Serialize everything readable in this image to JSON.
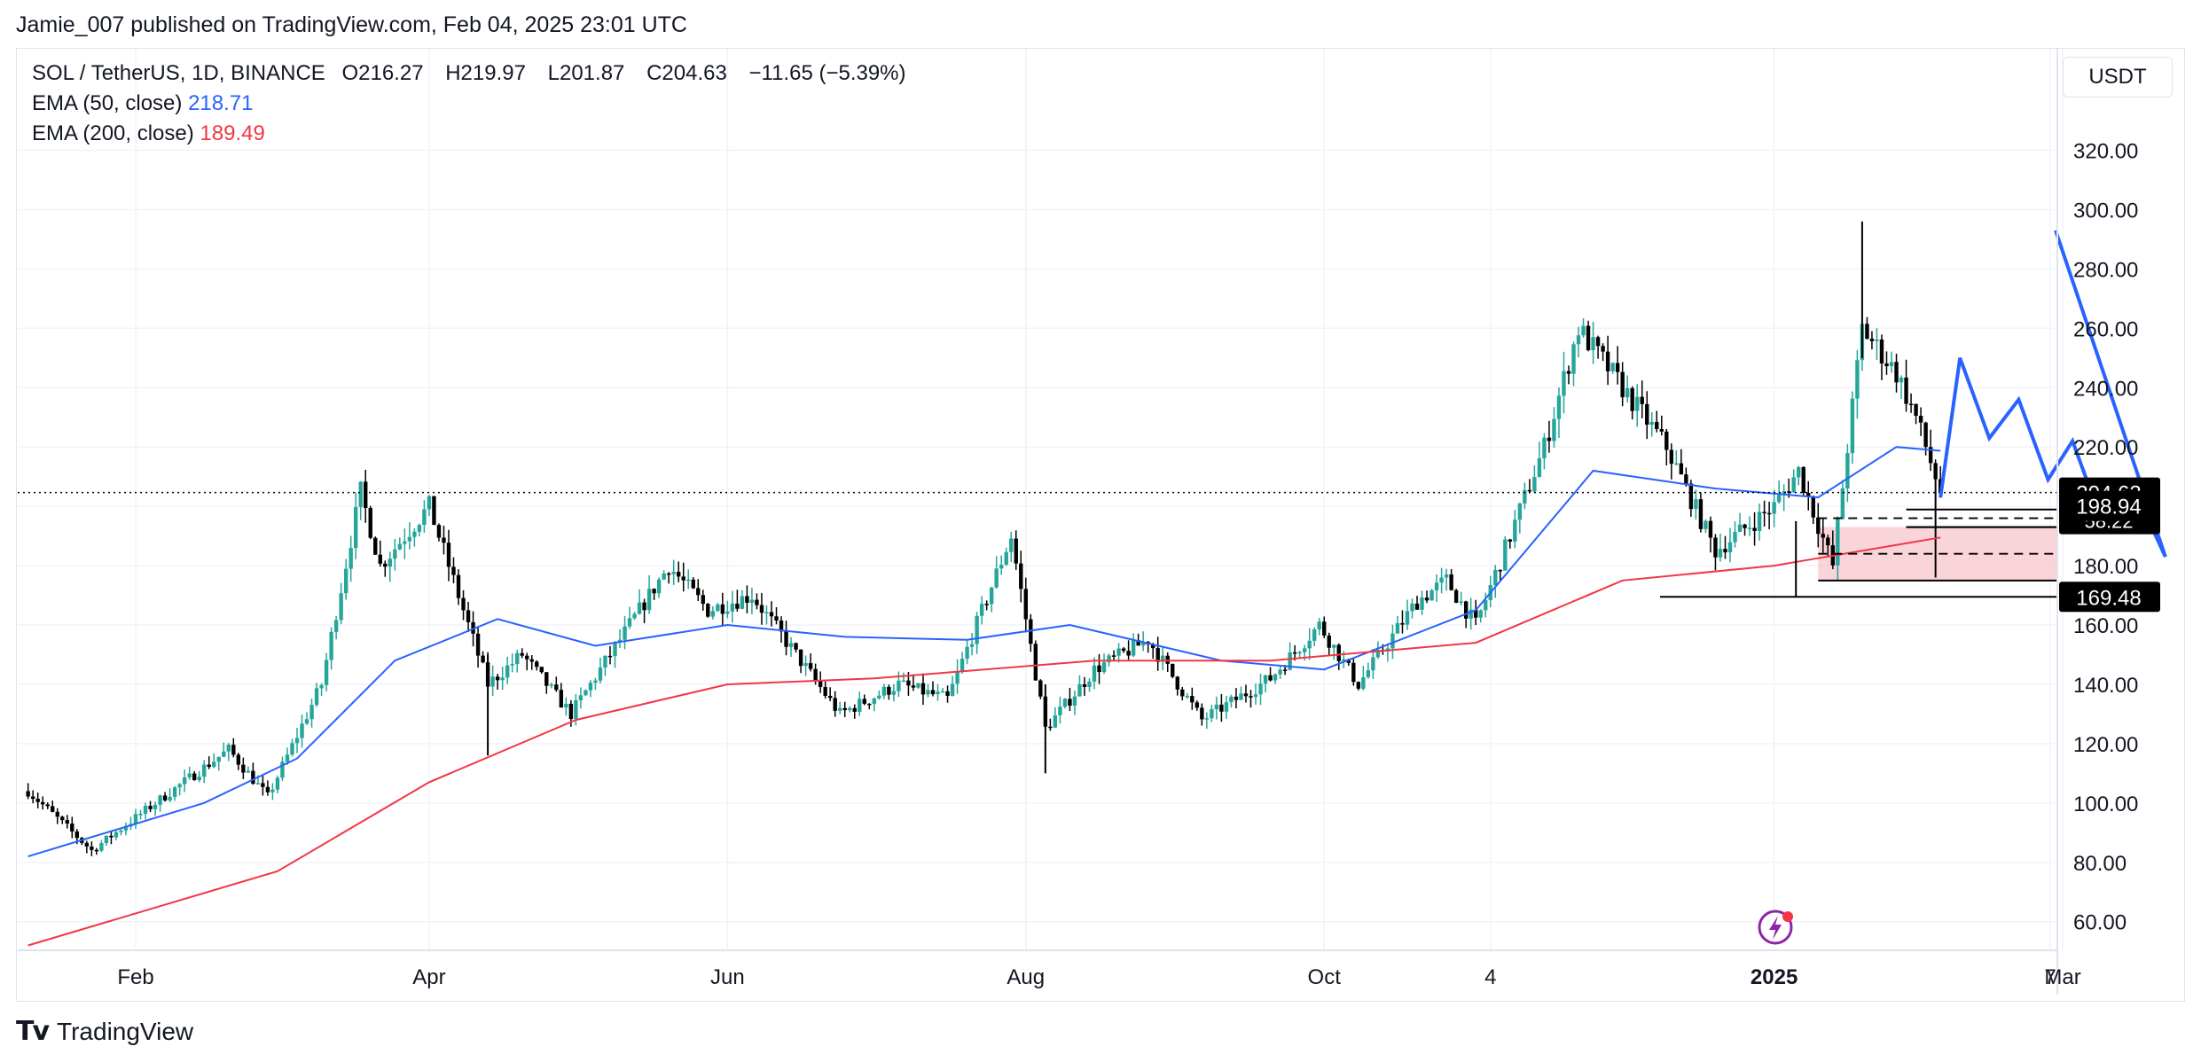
{
  "header": {
    "published": "Jamie_007 published on TradingView.com, Feb 04, 2025 23:01 UTC"
  },
  "legend": {
    "symbol": "SOL / TetherUS, 1D, BINANCE",
    "open": "O216.27",
    "high": "H219.97",
    "low": "L201.87",
    "close": "C204.63",
    "change": "−11.65 (−5.39%)",
    "ema50_label": "EMA (50, close)",
    "ema50_value": "218.71",
    "ema200_label": "EMA (200, close)",
    "ema200_value": "189.49"
  },
  "toolbar": {
    "currency": "USDT"
  },
  "footer": {
    "brand": "TradingView"
  },
  "colors": {
    "up": "#26a69a",
    "down": "#000000",
    "ema50": "#2962ff",
    "ema200": "#f23645",
    "projection": "#2962ff",
    "zone_fill": "#f7c9cf"
  },
  "chart_data": {
    "type": "candlestick",
    "title": "SOL / TetherUS, 1D, BINANCE",
    "x_ticks": [
      "Feb",
      "Apr",
      "Jun",
      "Aug",
      "Oct",
      "4",
      "2025",
      "Mar",
      "7"
    ],
    "y_ticks": [
      "60.00",
      "80.00",
      "100.00",
      "120.00",
      "140.00",
      "160.00",
      "180.00",
      "200.00",
      "220.00",
      "240.00",
      "260.00",
      "280.00",
      "300.00",
      "320.00"
    ],
    "ylim": [
      50,
      340
    ],
    "price_labels": {
      "last": "204.63",
      "countdown": "58:22",
      "level_1": "198.94",
      "level_2": "169.48"
    },
    "price_path": [
      [
        "2024-01-10",
        104
      ],
      [
        "2024-01-23",
        84
      ],
      [
        "2024-02-05",
        100
      ],
      [
        "2024-02-20",
        118
      ],
      [
        "2024-02-28",
        102
      ],
      [
        "2024-03-10",
        140
      ],
      [
        "2024-03-18",
        205
      ],
      [
        "2024-03-22",
        180
      ],
      [
        "2024-04-01",
        200
      ],
      [
        "2024-04-13",
        140
      ],
      [
        "2024-04-20",
        150
      ],
      [
        "2024-04-30",
        130
      ],
      [
        "2024-05-20",
        180
      ],
      [
        "2024-05-28",
        165
      ],
      [
        "2024-06-06",
        170
      ],
      [
        "2024-06-24",
        130
      ],
      [
        "2024-07-06",
        140
      ],
      [
        "2024-07-16",
        135
      ],
      [
        "2024-07-29",
        190
      ],
      [
        "2024-08-05",
        125
      ],
      [
        "2024-08-15",
        145
      ],
      [
        "2024-08-26",
        155
      ],
      [
        "2024-09-06",
        128
      ],
      [
        "2024-09-20",
        142
      ],
      [
        "2024-09-30",
        160
      ],
      [
        "2024-10-08",
        140
      ],
      [
        "2024-10-20",
        168
      ],
      [
        "2024-10-26",
        175
      ],
      [
        "2024-11-01",
        160
      ],
      [
        "2024-11-15",
        220
      ],
      [
        "2024-11-22",
        260
      ],
      [
        "2024-12-01",
        240
      ],
      [
        "2024-12-10",
        220
      ],
      [
        "2024-12-20",
        185
      ],
      [
        "2025-01-01",
        200
      ],
      [
        "2025-01-06",
        212
      ],
      [
        "2025-01-13",
        180
      ],
      [
        "2025-01-19",
        260
      ],
      [
        "2025-01-26",
        245
      ],
      [
        "2025-01-30",
        230
      ],
      [
        "2025-02-04",
        205
      ]
    ],
    "series": [
      {
        "name": "EMA (50, close)",
        "color": "#2962ff",
        "points": [
          [
            "2024-01-10",
            82
          ],
          [
            "2024-02-15",
            100
          ],
          [
            "2024-03-05",
            115
          ],
          [
            "2024-03-25",
            148
          ],
          [
            "2024-04-15",
            162
          ],
          [
            "2024-05-05",
            153
          ],
          [
            "2024-06-01",
            160
          ],
          [
            "2024-06-25",
            156
          ],
          [
            "2024-07-20",
            155
          ],
          [
            "2024-08-10",
            160
          ],
          [
            "2024-09-10",
            148
          ],
          [
            "2024-10-01",
            145
          ],
          [
            "2024-11-01",
            165
          ],
          [
            "2024-11-25",
            212
          ],
          [
            "2024-12-20",
            206
          ],
          [
            "2025-01-10",
            203
          ],
          [
            "2025-01-26",
            220
          ],
          [
            "2025-02-04",
            218.71
          ]
        ]
      },
      {
        "name": "EMA (200, close)",
        "color": "#f23645",
        "points": [
          [
            "2024-01-10",
            52
          ],
          [
            "2024-03-01",
            77
          ],
          [
            "2024-04-01",
            107
          ],
          [
            "2024-05-01",
            128
          ],
          [
            "2024-06-01",
            140
          ],
          [
            "2024-07-01",
            142
          ],
          [
            "2024-08-15",
            148
          ],
          [
            "2024-09-20",
            148
          ],
          [
            "2024-11-01",
            154
          ],
          [
            "2024-12-01",
            175
          ],
          [
            "2025-01-01",
            180
          ],
          [
            "2025-02-04",
            189.49
          ]
        ]
      }
    ],
    "annotations": {
      "projection_path": [
        [
          "2025-02-04",
          203
        ],
        [
          "2025-02-08",
          250
        ],
        [
          "2025-02-14",
          223
        ],
        [
          "2025-02-20",
          236
        ],
        [
          "2025-02-26",
          209
        ],
        [
          "2025-03-03",
          222
        ],
        [
          "2025-03-09",
          195
        ],
        [
          "2025-03-15",
          208
        ],
        [
          "2025-03-22",
          183
        ],
        [
          "2025-04-10",
          293
        ]
      ],
      "zone": {
        "top": 193,
        "bottom": 175,
        "from": "2025-01-10"
      },
      "horizontal_lines": [
        198.94,
        193,
        169.48
      ],
      "dashed_lines": [
        196,
        184
      ]
    }
  }
}
